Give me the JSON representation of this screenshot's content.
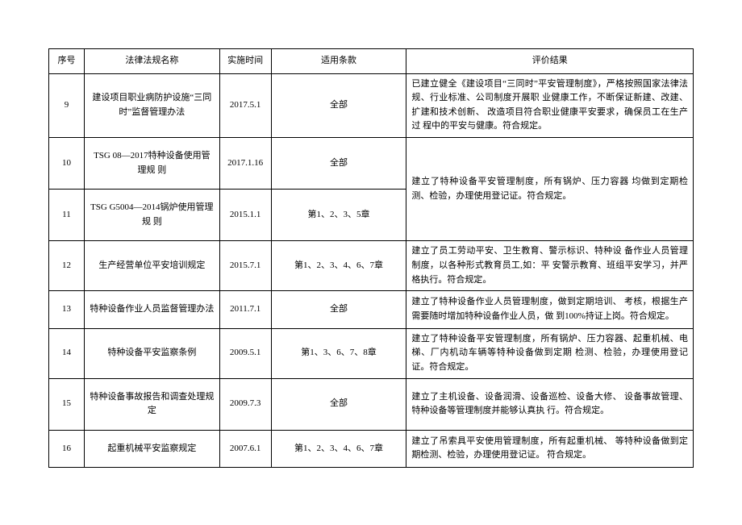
{
  "headers": {
    "seq": "序号",
    "name": "法律法规名称",
    "date": "实施时间",
    "clause": "适用条款",
    "result": "评价结果"
  },
  "rows": [
    {
      "seq": "9",
      "name": "建设项目职业病防护设施“三同时”监督管理办法",
      "date": "2017.5.1",
      "clause": "全部",
      "result": "已建立健全《建设项目“三同时”平安管理制度》，严格按照国家法律法规、行业标准、公司制度开展职 业健康工作，不断保证新建、改建、扩建和技术创新、 改造项目符合职业健康平安要求，确保员工在生产过 程中的平安与健康。符合规定。",
      "merge_result": null
    },
    {
      "seq": "10",
      "name": "TSG 08—2017特种设备使用管理规 则",
      "date": "2017.1.16",
      "clause": "全部",
      "result": "建立了特种设备平安管理制度，所有锅炉、压力容器 均做到定期检测、检验，办理使用登记证。符合规定。",
      "merge_result": 2
    },
    {
      "seq": "11",
      "name": "TSG G5004—2014锅炉使用管理规 则",
      "date": "2015.1.1",
      "clause": "第1、2、3、5章",
      "result": null,
      "merge_result": null
    },
    {
      "seq": "12",
      "name": "生产经营单位平安培训规定",
      "date": "2015.7.1",
      "clause": "第1、2、3、4、6、7章",
      "result": "建立了员工劳动平安、卫生教育、警示标识、特种设 备作业人员管理制度，以各种形式教育员工,如：平 安警示教育、班组平安学习，并严格执行。符合规定。",
      "merge_result": null
    },
    {
      "seq": "13",
      "name": "特种设备作业人员监督管理办法",
      "date": "2011.7.1",
      "clause": "全部",
      "result": "建立了特种设备作业人员管理制度，做到定期培训、 考核，根据生产需要随时增加特种设备作业人员，做 到100%持证上岗。符合规定。",
      "merge_result": null
    },
    {
      "seq": "14",
      "name": "特种设备平安监察条例",
      "date": "2009.5.1",
      "clause": "第1、3、6、7、8章",
      "result": "建立了特种设备平安管理制度，所有锅炉、压力容器、起重机械、电梯、厂内机动车辆等特种设备做到定期 检测、检验，办理使用登记证。符合规定。",
      "merge_result": null
    },
    {
      "seq": "15",
      "name": "特种设备事故报告和调查处理规定",
      "date": "2009.7.3",
      "clause": "全部",
      "result": "建立了主机设备、设备润滑、设备巡检、设备大修、 设备事故管理、特种设备等管理制度并能够认真执 行。符合规定。",
      "merge_result": null
    },
    {
      "seq": "16",
      "name": "起重机械平安监察规定",
      "date": "2007.6.1",
      "clause": "第1、2、3、4、6、7章",
      "result": "建立了吊索具平安使用管理制度，所有起重机械、 等特种设备做到定期检测、检验，办理使用登记证。 符合规定。",
      "merge_result": null
    }
  ]
}
